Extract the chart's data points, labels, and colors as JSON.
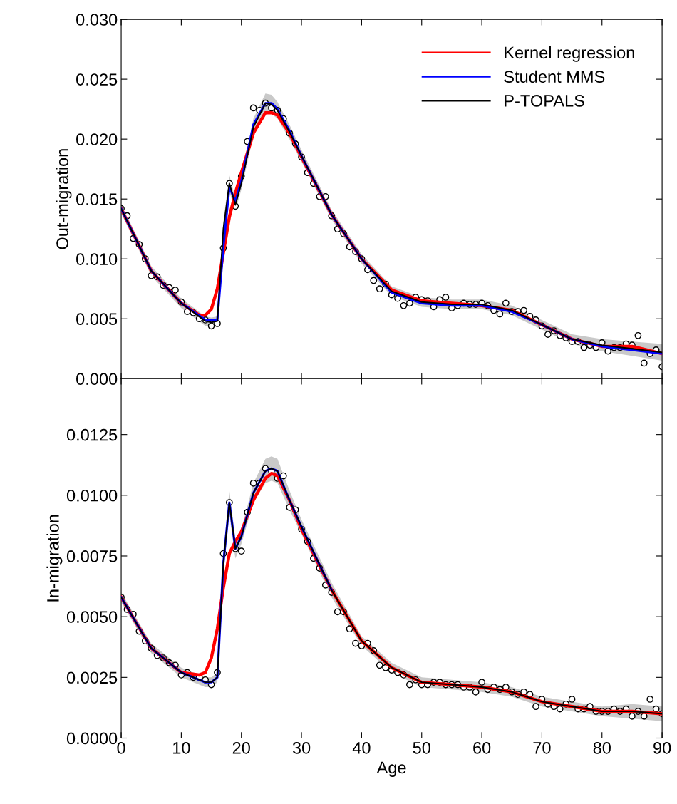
{
  "chart_data": [
    {
      "type": "line",
      "ylabel": "Out-migration",
      "xlim": [
        0,
        90
      ],
      "xticks": [
        0,
        10,
        20,
        30,
        40,
        50,
        60,
        70,
        80,
        90
      ],
      "ylim": [
        0,
        0.03
      ],
      "yticks": [
        {
          "value": 0,
          "label": "0.000"
        },
        {
          "value": 0.005,
          "label": "0.005"
        },
        {
          "value": 0.01,
          "label": "0.010"
        },
        {
          "value": 0.015,
          "label": "0.015"
        },
        {
          "value": 0.02,
          "label": "0.020"
        },
        {
          "value": 0.025,
          "label": "0.025"
        },
        {
          "value": 0.03,
          "label": "0.030"
        }
      ],
      "tick_labels": "y",
      "legend": "top right",
      "grid": false,
      "series": [
        {
          "type": "scatter",
          "marker": "circle",
          "color": "#000000",
          "x": [
            0,
            1,
            2,
            3,
            4,
            5,
            6,
            7,
            8,
            9,
            10,
            11,
            12,
            13,
            14,
            15,
            16,
            17,
            18,
            19,
            20,
            21,
            22,
            23,
            24,
            25,
            26,
            27,
            28,
            29,
            30,
            31,
            32,
            33,
            34,
            35,
            36,
            37,
            38,
            39,
            40,
            41,
            42,
            43,
            44,
            45,
            46,
            47,
            48,
            49,
            50,
            51,
            52,
            53,
            54,
            55,
            56,
            57,
            58,
            59,
            60,
            61,
            62,
            63,
            64,
            65,
            66,
            67,
            68,
            69,
            70,
            71,
            72,
            73,
            74,
            75,
            76,
            77,
            78,
            79,
            80,
            81,
            82,
            83,
            84,
            85,
            86,
            87,
            88,
            89,
            90
          ],
          "values": [
            0.0142,
            0.0136,
            0.0117,
            0.0112,
            0.01,
            0.0086,
            0.0085,
            0.0078,
            0.0076,
            0.0074,
            0.0064,
            0.0056,
            0.0055,
            0.005,
            0.0049,
            0.0044,
            0.0046,
            0.0109,
            0.0163,
            0.0144,
            0.0169,
            0.0198,
            0.0226,
            0.0224,
            0.023,
            0.0226,
            0.0224,
            0.0217,
            0.0205,
            0.0196,
            0.0185,
            0.0172,
            0.0163,
            0.0152,
            0.0152,
            0.0136,
            0.0125,
            0.0121,
            0.011,
            0.0106,
            0.01,
            0.0091,
            0.0082,
            0.0075,
            0.0079,
            0.007,
            0.0067,
            0.0061,
            0.0063,
            0.0068,
            0.0066,
            0.0065,
            0.006,
            0.0066,
            0.0068,
            0.0059,
            0.0061,
            0.0063,
            0.0062,
            0.0062,
            0.0063,
            0.0061,
            0.0057,
            0.0054,
            0.0063,
            0.0056,
            0.0056,
            0.0057,
            0.0052,
            0.0049,
            0.0044,
            0.0037,
            0.004,
            0.0036,
            0.0034,
            0.0031,
            0.0031,
            0.0026,
            0.0028,
            0.0026,
            0.003,
            0.0023,
            0.0026,
            0.0026,
            0.0029,
            0.0028,
            0.0036,
            0.0013,
            0.0021,
            0.0024,
            0.001
          ]
        },
        {
          "name": "Kernel regression",
          "color": "#ff0000",
          "x": [
            0,
            5,
            10,
            13,
            14,
            15,
            16,
            17,
            18,
            19,
            20,
            22,
            24,
            25,
            26,
            28,
            30,
            35,
            40,
            45,
            50,
            55,
            60,
            65,
            70,
            75,
            80,
            85,
            90
          ],
          "values": [
            0.0142,
            0.009,
            0.0063,
            0.0053,
            0.0053,
            0.0058,
            0.0075,
            0.0105,
            0.0135,
            0.0155,
            0.0172,
            0.0205,
            0.0222,
            0.0222,
            0.022,
            0.0205,
            0.0185,
            0.0137,
            0.01,
            0.0074,
            0.0065,
            0.0063,
            0.0061,
            0.0057,
            0.0045,
            0.0033,
            0.0027,
            0.0027,
            0.0021
          ]
        },
        {
          "name": "Student MMS",
          "color": "#0000ff",
          "x": [
            0,
            5,
            10,
            14,
            16,
            17,
            18,
            19,
            20,
            22,
            24,
            25,
            26,
            28,
            30,
            35,
            40,
            45,
            50,
            55,
            60,
            65,
            70,
            75,
            80,
            85,
            90
          ],
          "values": [
            0.0142,
            0.009,
            0.0063,
            0.0049,
            0.0049,
            0.011,
            0.016,
            0.0148,
            0.0165,
            0.0212,
            0.023,
            0.023,
            0.0225,
            0.0207,
            0.0186,
            0.0137,
            0.01,
            0.0072,
            0.0063,
            0.0061,
            0.0061,
            0.0056,
            0.0045,
            0.0033,
            0.0027,
            0.0024,
            0.0021
          ]
        },
        {
          "name": "P-TOPALS",
          "color": "#000000",
          "x": [
            0,
            5,
            10,
            14,
            15,
            16,
            17,
            18,
            19,
            20,
            22,
            24,
            25,
            26,
            28,
            30,
            35,
            40,
            45,
            50,
            55,
            60,
            65,
            70,
            75,
            80,
            85,
            90
          ],
          "values": [
            0.0142,
            0.009,
            0.0063,
            0.0048,
            0.0047,
            0.0048,
            0.0125,
            0.0163,
            0.0145,
            0.0163,
            0.021,
            0.023,
            0.0229,
            0.0224,
            0.0206,
            0.0186,
            0.0137,
            0.01,
            0.0073,
            0.0064,
            0.0062,
            0.0062,
            0.0057,
            0.0045,
            0.0033,
            0.0028,
            0.0025,
            0.0022
          ],
          "lower": [
            0.0138,
            0.0086,
            0.0059,
            0.0044,
            0.0043,
            0.0044,
            0.0119,
            0.0156,
            0.014,
            0.0158,
            0.0203,
            0.0222,
            0.0221,
            0.0217,
            0.02,
            0.0181,
            0.0133,
            0.0096,
            0.0069,
            0.006,
            0.0058,
            0.0058,
            0.0053,
            0.0041,
            0.0029,
            0.0023,
            0.0019,
            0.0015
          ],
          "upper": [
            0.0146,
            0.0094,
            0.0067,
            0.0052,
            0.0051,
            0.0052,
            0.0131,
            0.017,
            0.015,
            0.0168,
            0.0217,
            0.0238,
            0.0237,
            0.0231,
            0.0212,
            0.0191,
            0.0141,
            0.0104,
            0.0077,
            0.0068,
            0.0066,
            0.0066,
            0.0061,
            0.0049,
            0.0037,
            0.0033,
            0.0031,
            0.0029
          ]
        }
      ]
    },
    {
      "type": "line",
      "ylabel": "In-migration",
      "xlabel": "Age",
      "xlim": [
        0,
        90
      ],
      "xticks": [
        0,
        10,
        20,
        30,
        40,
        50,
        60,
        70,
        80,
        90
      ],
      "ylim": [
        0,
        0.0148
      ],
      "yticks": [
        {
          "value": 0,
          "label": "0.0000"
        },
        {
          "value": 0.0025,
          "label": "0.0025"
        },
        {
          "value": 0.005,
          "label": "0.0050"
        },
        {
          "value": 0.0075,
          "label": "0.0075"
        },
        {
          "value": 0.01,
          "label": "0.0100"
        },
        {
          "value": 0.0125,
          "label": "0.0125"
        }
      ],
      "grid": false,
      "series": [
        {
          "type": "scatter",
          "marker": "circle",
          "color": "#000000",
          "x": [
            0,
            1,
            2,
            3,
            4,
            5,
            6,
            7,
            8,
            9,
            10,
            11,
            12,
            13,
            14,
            15,
            16,
            17,
            18,
            19,
            20,
            21,
            22,
            23,
            24,
            25,
            26,
            27,
            28,
            29,
            30,
            31,
            32,
            33,
            34,
            35,
            36,
            37,
            38,
            39,
            40,
            41,
            42,
            43,
            44,
            45,
            46,
            47,
            48,
            49,
            50,
            51,
            52,
            53,
            54,
            55,
            56,
            57,
            58,
            59,
            60,
            61,
            62,
            63,
            64,
            65,
            66,
            67,
            68,
            69,
            70,
            71,
            72,
            73,
            74,
            75,
            76,
            77,
            78,
            79,
            80,
            81,
            82,
            83,
            84,
            85,
            86,
            87,
            88,
            89,
            90
          ],
          "values": [
            0.0058,
            0.0053,
            0.0051,
            0.0044,
            0.004,
            0.0037,
            0.0034,
            0.0033,
            0.0031,
            0.003,
            0.0026,
            0.0027,
            0.0025,
            0.0025,
            0.0024,
            0.0022,
            0.0027,
            0.0076,
            0.0097,
            0.0078,
            0.0077,
            0.0093,
            0.0105,
            0.0105,
            0.0111,
            0.011,
            0.0107,
            0.0108,
            0.0095,
            0.0094,
            0.0086,
            0.0081,
            0.0074,
            0.007,
            0.0063,
            0.006,
            0.0052,
            0.0052,
            0.0045,
            0.0039,
            0.0038,
            0.0039,
            0.0036,
            0.003,
            0.0029,
            0.0028,
            0.0027,
            0.0026,
            0.0022,
            0.0024,
            0.0022,
            0.0022,
            0.0023,
            0.0023,
            0.0022,
            0.0022,
            0.0022,
            0.0021,
            0.0021,
            0.0019,
            0.0023,
            0.002,
            0.0021,
            0.002,
            0.0021,
            0.0019,
            0.0018,
            0.0019,
            0.0018,
            0.0013,
            0.0016,
            0.0014,
            0.0013,
            0.0012,
            0.0014,
            0.0016,
            0.0012,
            0.0012,
            0.0013,
            0.0011,
            0.0011,
            0.0011,
            0.0012,
            0.0011,
            0.0012,
            0.0009,
            0.0011,
            0.0009,
            0.0016,
            0.0012,
            0.001
          ]
        },
        {
          "color": "#ff0000",
          "x": [
            0,
            5,
            10,
            13,
            14,
            15,
            16,
            17,
            18,
            19,
            20,
            22,
            24,
            25,
            26,
            28,
            30,
            35,
            40,
            45,
            50,
            55,
            60,
            65,
            70,
            75,
            80,
            85,
            90
          ],
          "values": [
            0.0058,
            0.0037,
            0.0027,
            0.0026,
            0.0027,
            0.0033,
            0.0045,
            0.0062,
            0.0076,
            0.0081,
            0.0085,
            0.0098,
            0.0107,
            0.0109,
            0.0108,
            0.0098,
            0.0086,
            0.0061,
            0.004,
            0.0029,
            0.0023,
            0.0022,
            0.0021,
            0.0019,
            0.0015,
            0.0013,
            0.0011,
            0.0011,
            0.001
          ]
        },
        {
          "color": "#0000ff",
          "x": [
            0,
            5,
            10,
            14,
            15,
            16,
            17,
            18,
            19,
            20,
            22,
            24,
            25,
            26,
            28,
            30,
            35
          ],
          "values": [
            0.0058,
            0.0037,
            0.0027,
            0.0023,
            0.0023,
            0.0025,
            0.0072,
            0.0097,
            0.0078,
            0.0083,
            0.0101,
            0.011,
            0.0111,
            0.011,
            0.0098,
            0.0087,
            0.0061
          ]
        },
        {
          "color": "#000000",
          "x": [
            0,
            5,
            10,
            14,
            15,
            16,
            17,
            18,
            19,
            20,
            22,
            24,
            25,
            26,
            28,
            30,
            35,
            40,
            45,
            50,
            55,
            60,
            65,
            70,
            75,
            80,
            85,
            90
          ],
          "values": [
            0.0058,
            0.0037,
            0.0027,
            0.0023,
            0.0023,
            0.0025,
            0.0072,
            0.0097,
            0.0078,
            0.0083,
            0.0101,
            0.011,
            0.0111,
            0.011,
            0.0098,
            0.0087,
            0.0061,
            0.004,
            0.0029,
            0.0023,
            0.0022,
            0.0021,
            0.0019,
            0.0015,
            0.0013,
            0.0011,
            0.0011,
            0.001
          ],
          "lower": [
            0.0056,
            0.0035,
            0.0025,
            0.0021,
            0.0021,
            0.0023,
            0.0068,
            0.0092,
            0.0074,
            0.008,
            0.0097,
            0.0105,
            0.0106,
            0.0105,
            0.0094,
            0.0084,
            0.0058,
            0.0038,
            0.0027,
            0.0021,
            0.002,
            0.0019,
            0.0017,
            0.0013,
            0.0011,
            0.0009,
            0.0008,
            0.0007
          ],
          "upper": [
            0.006,
            0.0039,
            0.0029,
            0.0025,
            0.0025,
            0.0027,
            0.0076,
            0.0102,
            0.0082,
            0.0086,
            0.0105,
            0.0115,
            0.0116,
            0.0115,
            0.0102,
            0.009,
            0.0064,
            0.0042,
            0.0031,
            0.0025,
            0.0024,
            0.0023,
            0.0021,
            0.0017,
            0.0015,
            0.0013,
            0.0014,
            0.0013
          ]
        }
      ]
    }
  ]
}
